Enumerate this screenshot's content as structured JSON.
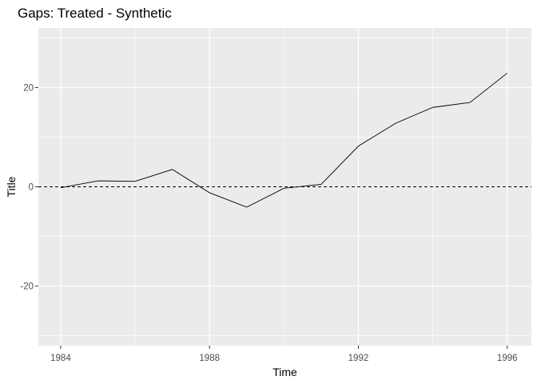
{
  "chart_data": {
    "type": "line",
    "title": "Gaps: Treated - Synthetic",
    "xlabel": "Time",
    "ylabel": "Title",
    "x": [
      1984,
      1985,
      1986,
      1987,
      1988,
      1989,
      1990,
      1991,
      1992,
      1993,
      1994,
      1995,
      1996
    ],
    "series": [
      {
        "values": [
          -0.2,
          1.2,
          1.1,
          3.5,
          -1.2,
          -4.1,
          -0.3,
          0.5,
          8.2,
          12.8,
          16.0,
          17.0,
          22.9
        ]
      }
    ],
    "reference_line": {
      "y": 0,
      "style": "dashed"
    },
    "xticks": [
      1984,
      1988,
      1992,
      1996
    ],
    "xtick_labels": [
      "1984",
      "1988",
      "1992",
      "1996"
    ],
    "yticks": [
      -20,
      0,
      20
    ],
    "ytick_labels": [
      "-20",
      "0",
      "20"
    ],
    "xlim": [
      1983.4,
      1996.65
    ],
    "ylim": [
      -32,
      32
    ],
    "grid": true,
    "colors": {
      "panel": "#ebebeb",
      "grid": "#ffffff",
      "line": "#000000"
    }
  }
}
